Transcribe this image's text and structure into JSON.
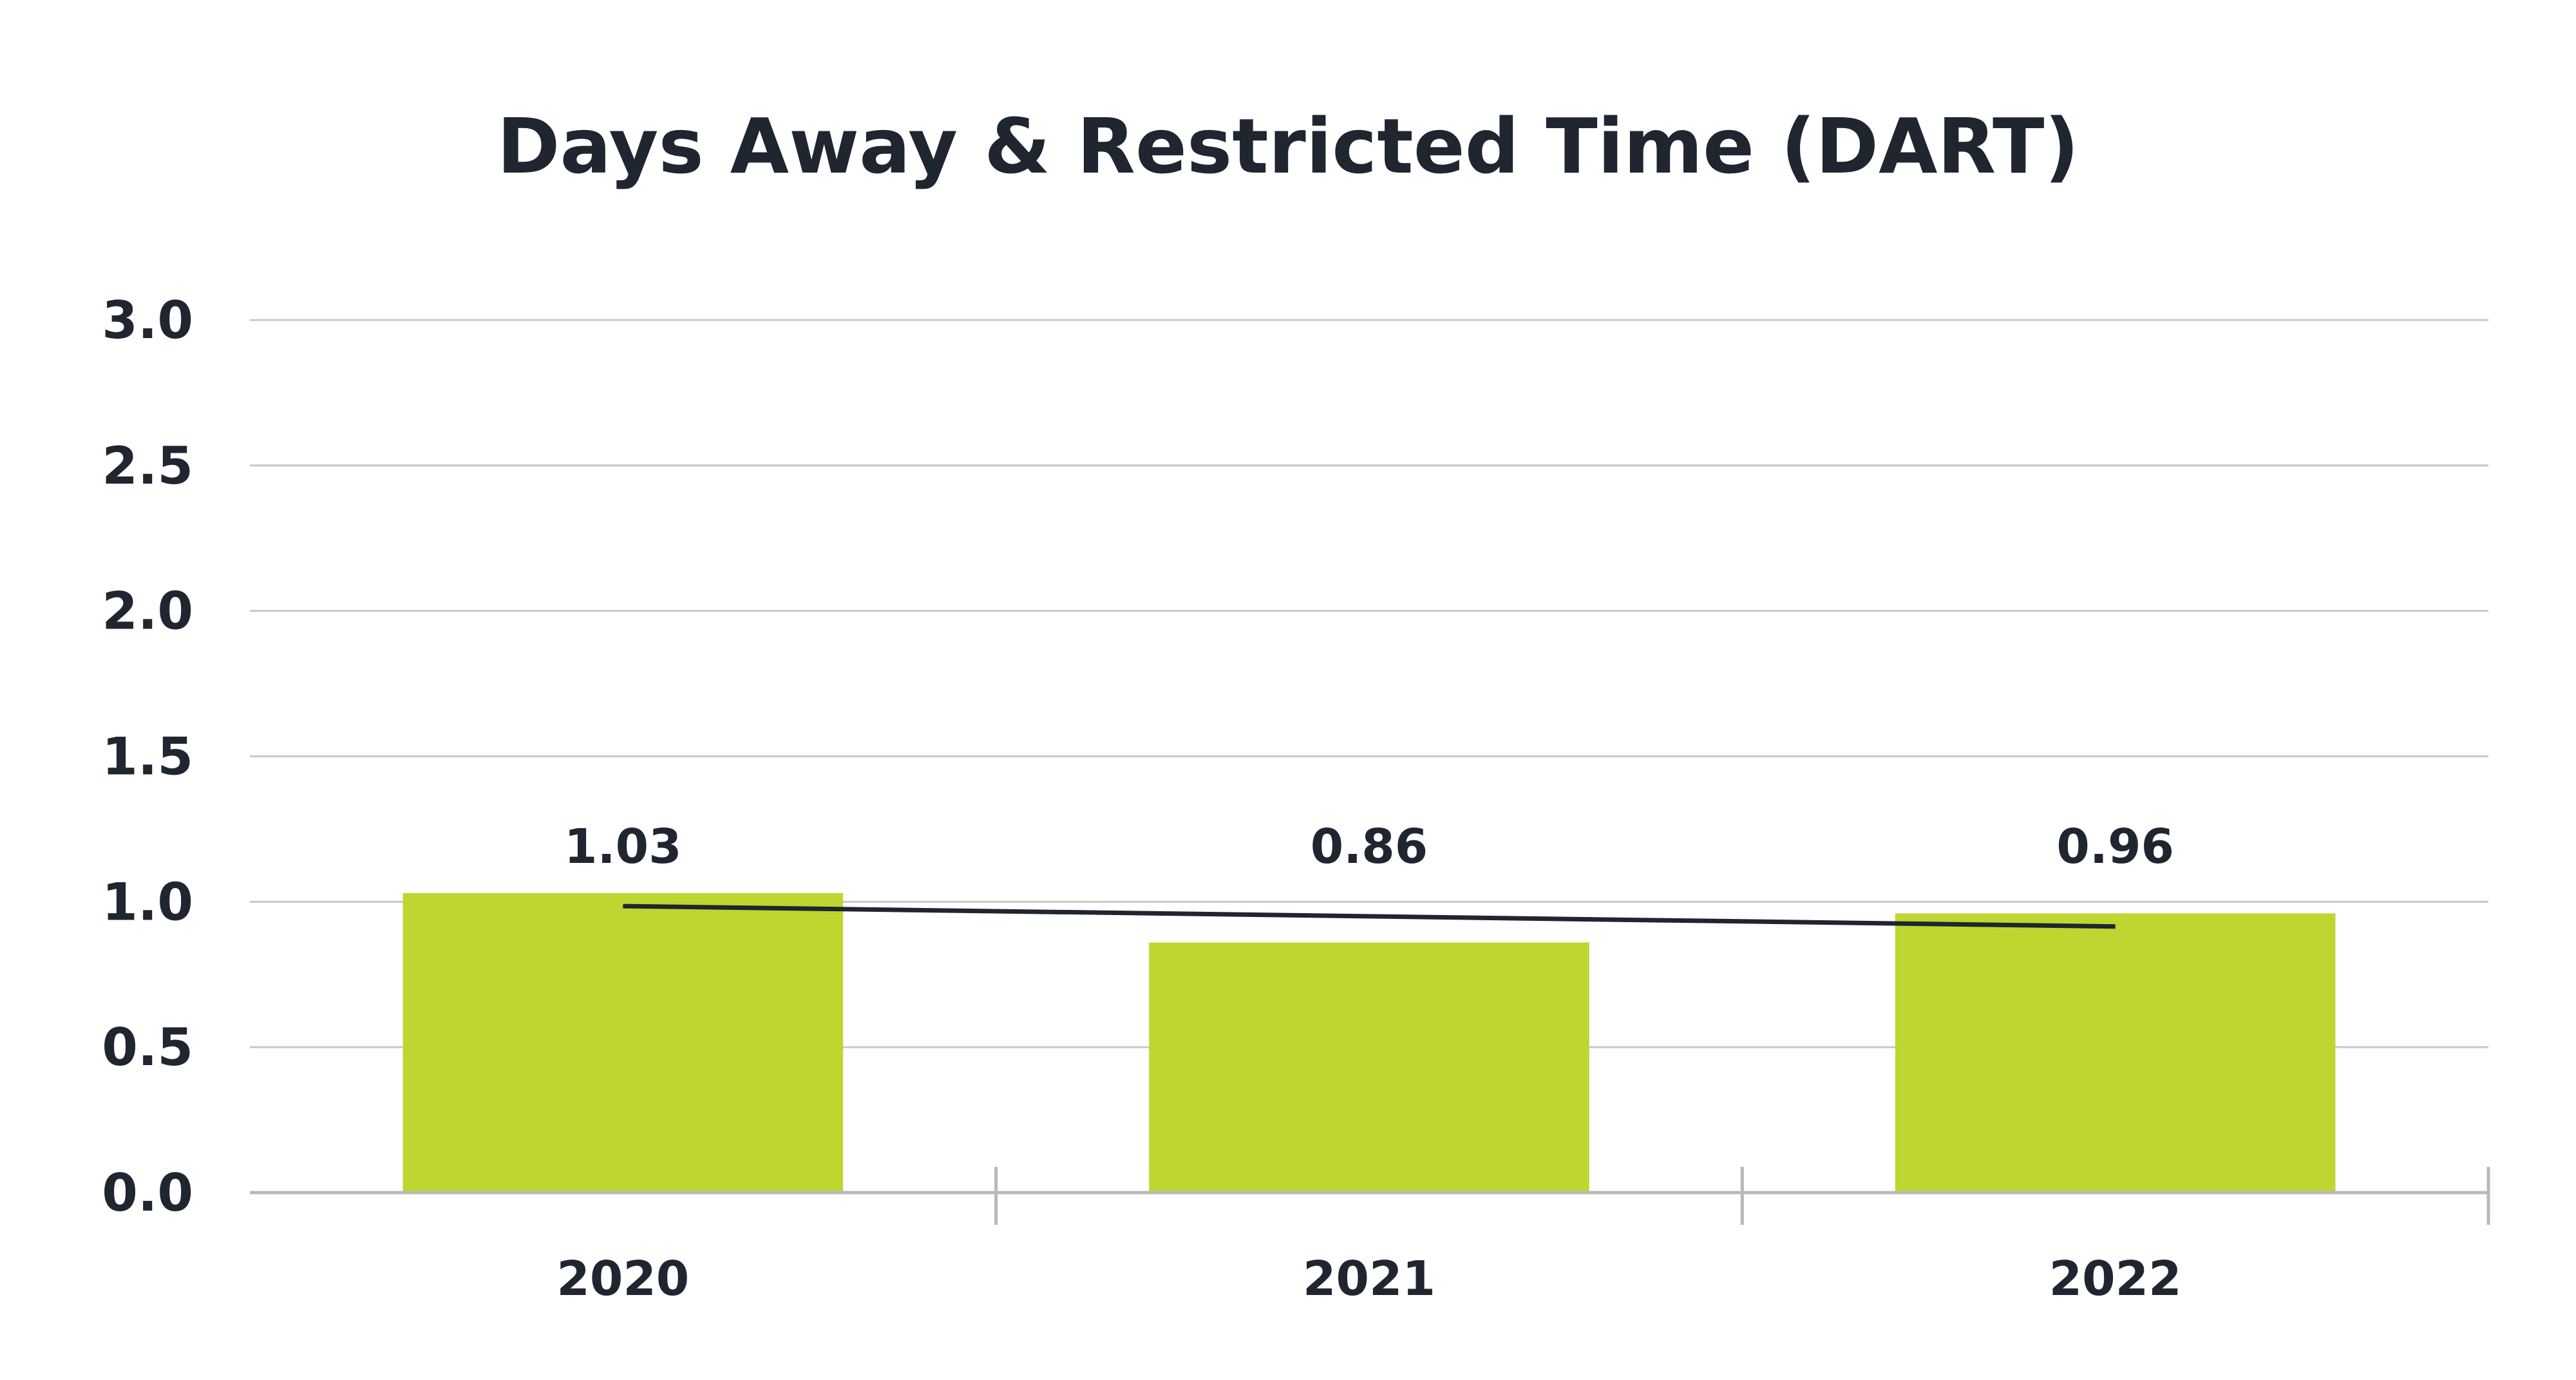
{
  "chart_data": {
    "type": "bar",
    "title": "Days Away & Restricted Time (DART)",
    "xlabel": "",
    "ylabel": "",
    "categories": [
      "2020",
      "2021",
      "2022"
    ],
    "values": [
      1.03,
      0.86,
      0.96
    ],
    "data_labels": [
      "1.03",
      "0.86",
      "0.96"
    ],
    "trendline": true,
    "ylim": [
      0,
      3.0
    ],
    "yticks": [
      0.0,
      0.5,
      1.0,
      1.5,
      2.0,
      2.5,
      3.0
    ],
    "ytick_labels": [
      "0.0",
      "0.5",
      "1.0",
      "1.5",
      "2.0",
      "2.5",
      "3.0"
    ],
    "grid": true,
    "legend": "none",
    "colors": {
      "bar": "#bfd630",
      "trendline": "#1f2630",
      "grid": "#c8c8c8",
      "axis": "#b8b8b8",
      "text": "#1f2630"
    }
  }
}
